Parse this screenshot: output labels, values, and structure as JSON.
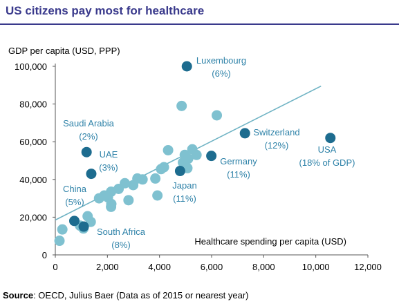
{
  "header": {
    "title": "US citizens pay most for healthcare"
  },
  "footer": {
    "source_label": "Source",
    "source_text": ": OECD, Julius Baer (Data as of 2015 or nearest year)"
  },
  "colors": {
    "light": "#7fc1d0",
    "dark": "#1d6c8f",
    "trend": "#6fb3c4",
    "title": "#3a3a8c",
    "annotation": "#2e82a8"
  },
  "chart_data": {
    "type": "scatter",
    "title": "US citizens pay most for healthcare",
    "xlabel": "Healthcare spending per capita (USD)",
    "ylabel": "GDP per capita (USD, PPP)",
    "xlim": [
      0,
      12000
    ],
    "ylim": [
      0,
      100000
    ],
    "xticks": [
      "0",
      "2,000",
      "4,000",
      "6,000",
      "8,000",
      "10,000",
      "12,000"
    ],
    "yticks": [
      "0",
      "20,000",
      "40,000",
      "60,000",
      "80,000",
      "100,000"
    ],
    "grid": false,
    "trendline": {
      "x": [
        0,
        10200
      ],
      "y": [
        18500,
        89500
      ]
    },
    "highlighted": [
      {
        "name": "Luxembourg",
        "sub": "(6%)",
        "x": 5050,
        "y": 100000
      },
      {
        "name": "Switzerland",
        "sub": "(12%)",
        "x": 7280,
        "y": 64500
      },
      {
        "name": "USA",
        "sub": "(18% of GDP)",
        "x": 10560,
        "y": 62000
      },
      {
        "name": "Germany",
        "sub": "(11%)",
        "x": 5990,
        "y": 52500
      },
      {
        "name": "Saudi Arabia",
        "sub": "(2%)",
        "x": 1200,
        "y": 54500
      },
      {
        "name": "UAE",
        "sub": "(3%)",
        "x": 1380,
        "y": 43000
      },
      {
        "name": "Japan",
        "sub": "(11%)",
        "x": 4790,
        "y": 44500
      },
      {
        "name": "China",
        "sub": "(5%)",
        "x": 730,
        "y": 18000
      },
      {
        "name": "South Africa",
        "sub": "(8%)",
        "x": 1090,
        "y": 15000
      }
    ],
    "others": [
      {
        "x": 4850,
        "y": 79000
      },
      {
        "x": 6200,
        "y": 74000
      },
      {
        "x": 4330,
        "y": 55500
      },
      {
        "x": 5260,
        "y": 56000
      },
      {
        "x": 4970,
        "y": 53000
      },
      {
        "x": 5100,
        "y": 51000
      },
      {
        "x": 5420,
        "y": 53000
      },
      {
        "x": 4900,
        "y": 49000
      },
      {
        "x": 5070,
        "y": 46000
      },
      {
        "x": 4170,
        "y": 46500
      },
      {
        "x": 4060,
        "y": 45500
      },
      {
        "x": 3840,
        "y": 40500
      },
      {
        "x": 3150,
        "y": 40500
      },
      {
        "x": 3350,
        "y": 40000
      },
      {
        "x": 2990,
        "y": 37000
      },
      {
        "x": 2670,
        "y": 38000
      },
      {
        "x": 2430,
        "y": 35000
      },
      {
        "x": 2140,
        "y": 33500
      },
      {
        "x": 2020,
        "y": 30500
      },
      {
        "x": 1880,
        "y": 31500
      },
      {
        "x": 1680,
        "y": 30000
      },
      {
        "x": 2150,
        "y": 27000
      },
      {
        "x": 2140,
        "y": 25500
      },
      {
        "x": 2810,
        "y": 29000
      },
      {
        "x": 3920,
        "y": 31500
      },
      {
        "x": 1240,
        "y": 20500
      },
      {
        "x": 1360,
        "y": 17500
      },
      {
        "x": 1080,
        "y": 14000
      },
      {
        "x": 950,
        "y": 15500
      },
      {
        "x": 270,
        "y": 13500
      },
      {
        "x": 160,
        "y": 7500
      }
    ]
  }
}
